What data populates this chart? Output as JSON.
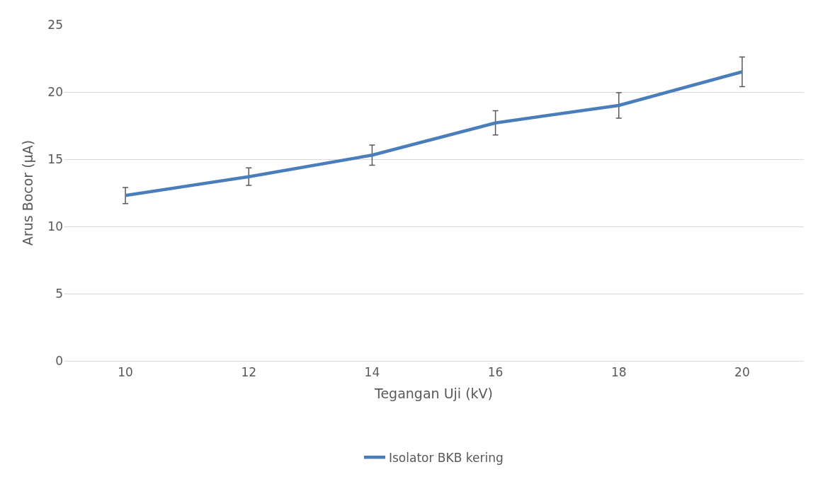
{
  "chart_data": {
    "type": "line",
    "xlabel": "Tegangan Uji (kV)",
    "ylabel": "Arus Bocor (µA)",
    "categories": [
      "10",
      "12",
      "14",
      "16",
      "18",
      "20"
    ],
    "series": [
      {
        "name": "Isolator BKB kering",
        "color": "#4a7ebb",
        "values": [
          12.3,
          13.7,
          15.3,
          17.7,
          19.0,
          21.5
        ],
        "errors": [
          0.6,
          0.65,
          0.75,
          0.9,
          0.95,
          1.1
        ]
      }
    ],
    "ylim": [
      0,
      25
    ],
    "yticks": [
      0,
      5,
      10,
      15,
      20,
      25
    ],
    "grid": "y",
    "legend": "bottom",
    "marker": "none",
    "line_style": "solid"
  }
}
